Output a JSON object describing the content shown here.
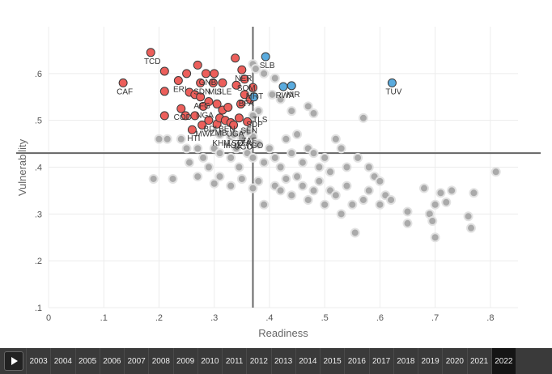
{
  "chart_data": {
    "type": "scatter",
    "xlabel": "Readiness",
    "ylabel": "Vulnerability",
    "xlim": [
      0,
      0.85
    ],
    "ylim": [
      0.1,
      0.7
    ],
    "x_ticks": [
      "0",
      ".1",
      ".2",
      ".3",
      ".4",
      ".5",
      ".6",
      ".7",
      ".8"
    ],
    "y_ticks": [
      ".1",
      ".2",
      ".3",
      ".4",
      ".5",
      ".6"
    ],
    "grid": true,
    "reference_lines": {
      "x": 0.37,
      "y": 0.43
    },
    "colors": {
      "red": "#ec5f5b",
      "blue": "#5aabde",
      "gray": "#aaaaaa",
      "line": "#666666"
    },
    "series": [
      {
        "color": "red",
        "points": [
          {
            "x": 0.135,
            "y": 0.58,
            "label": "CAF"
          },
          {
            "x": 0.185,
            "y": 0.645,
            "label": "TCD"
          },
          {
            "x": 0.21,
            "y": 0.605,
            "label": ""
          },
          {
            "x": 0.21,
            "y": 0.562,
            "label": ""
          },
          {
            "x": 0.21,
            "y": 0.51,
            "label": ""
          },
          {
            "x": 0.235,
            "y": 0.585,
            "label": "ERI"
          },
          {
            "x": 0.24,
            "y": 0.525,
            "label": "COD"
          },
          {
            "x": 0.248,
            "y": 0.51,
            "label": ""
          },
          {
            "x": 0.25,
            "y": 0.6,
            "label": ""
          },
          {
            "x": 0.255,
            "y": 0.56,
            "label": ""
          },
          {
            "x": 0.26,
            "y": 0.48,
            "label": "HTI"
          },
          {
            "x": 0.265,
            "y": 0.51,
            "label": ""
          },
          {
            "x": 0.265,
            "y": 0.555,
            "label": ""
          },
          {
            "x": 0.27,
            "y": 0.618,
            "label": ""
          },
          {
            "x": 0.275,
            "y": 0.58,
            "label": "SDN"
          },
          {
            "x": 0.275,
            "y": 0.55,
            "label": "AFG"
          },
          {
            "x": 0.278,
            "y": 0.49,
            "label": "MWI"
          },
          {
            "x": 0.28,
            "y": 0.53,
            "label": "NGA"
          },
          {
            "x": 0.285,
            "y": 0.6,
            "label": "GNB"
          },
          {
            "x": 0.29,
            "y": 0.5,
            "label": "BDI"
          },
          {
            "x": 0.29,
            "y": 0.54,
            "label": ""
          },
          {
            "x": 0.298,
            "y": 0.58,
            "label": "MLI"
          },
          {
            "x": 0.3,
            "y": 0.6,
            "label": ""
          },
          {
            "x": 0.305,
            "y": 0.535,
            "label": ""
          },
          {
            "x": 0.305,
            "y": 0.492,
            "label": "ZMB"
          },
          {
            "x": 0.31,
            "y": 0.505,
            "label": ""
          },
          {
            "x": 0.315,
            "y": 0.522,
            "label": ""
          },
          {
            "x": 0.315,
            "y": 0.58,
            "label": "SLE"
          },
          {
            "x": 0.32,
            "y": 0.5,
            "label": "BEN"
          },
          {
            "x": 0.325,
            "y": 0.528,
            "label": ""
          },
          {
            "x": 0.33,
            "y": 0.495,
            "label": ""
          },
          {
            "x": 0.335,
            "y": 0.49,
            "label": "UGA"
          },
          {
            "x": 0.338,
            "y": 0.633,
            "label": ""
          },
          {
            "x": 0.34,
            "y": 0.575,
            "label": ""
          },
          {
            "x": 0.345,
            "y": 0.505,
            "label": ""
          },
          {
            "x": 0.348,
            "y": 0.535,
            "label": ""
          },
          {
            "x": 0.35,
            "y": 0.608,
            "label": "NER"
          },
          {
            "x": 0.355,
            "y": 0.555,
            "label": "BFA"
          },
          {
            "x": 0.355,
            "y": 0.588,
            "label": "SOM"
          },
          {
            "x": 0.36,
            "y": 0.497,
            "label": "SEN"
          },
          {
            "x": 0.365,
            "y": 0.545,
            "label": ""
          },
          {
            "x": 0.37,
            "y": 0.57,
            "label": "MRT"
          }
        ]
      },
      {
        "color": "blue",
        "points": [
          {
            "x": 0.393,
            "y": 0.636,
            "label": "SLB"
          },
          {
            "x": 0.425,
            "y": 0.572,
            "label": "RWA"
          },
          {
            "x": 0.44,
            "y": 0.574,
            "label": "KIR"
          },
          {
            "x": 0.622,
            "y": 0.58,
            "label": "TUV"
          },
          {
            "x": 0.372,
            "y": 0.55,
            "label": ""
          }
        ]
      },
      {
        "color": "gray",
        "points": [
          {
            "x": 0.38,
            "y": 0.52,
            "label": "TLS"
          },
          {
            "x": 0.37,
            "y": 0.51,
            "label": "SDP"
          },
          {
            "x": 0.37,
            "y": 0.465,
            "label": "TGO"
          },
          {
            "x": 0.36,
            "y": 0.475,
            "label": "ZAF"
          },
          {
            "x": 0.33,
            "y": 0.465,
            "label": "MOZ"
          },
          {
            "x": 0.35,
            "y": 0.47,
            "label": "TZA"
          },
          {
            "x": 0.35,
            "y": 0.462,
            "label": "UGO"
          },
          {
            "x": 0.335,
            "y": 0.47,
            "label": "LSO"
          },
          {
            "x": 0.31,
            "y": 0.47,
            "label": "KHM"
          },
          {
            "x": 0.37,
            "y": 0.62
          },
          {
            "x": 0.375,
            "y": 0.61
          },
          {
            "x": 0.39,
            "y": 0.6
          },
          {
            "x": 0.41,
            "y": 0.59
          },
          {
            "x": 0.37,
            "y": 0.565
          },
          {
            "x": 0.405,
            "y": 0.555
          },
          {
            "x": 0.42,
            "y": 0.545
          },
          {
            "x": 0.44,
            "y": 0.52
          },
          {
            "x": 0.47,
            "y": 0.53
          },
          {
            "x": 0.48,
            "y": 0.515
          },
          {
            "x": 0.57,
            "y": 0.505
          },
          {
            "x": 0.2,
            "y": 0.46
          },
          {
            "x": 0.215,
            "y": 0.46
          },
          {
            "x": 0.24,
            "y": 0.46
          },
          {
            "x": 0.25,
            "y": 0.44
          },
          {
            "x": 0.255,
            "y": 0.41
          },
          {
            "x": 0.27,
            "y": 0.44
          },
          {
            "x": 0.28,
            "y": 0.42
          },
          {
            "x": 0.29,
            "y": 0.4
          },
          {
            "x": 0.3,
            "y": 0.44
          },
          {
            "x": 0.31,
            "y": 0.43
          },
          {
            "x": 0.33,
            "y": 0.42
          },
          {
            "x": 0.34,
            "y": 0.44
          },
          {
            "x": 0.345,
            "y": 0.4
          },
          {
            "x": 0.36,
            "y": 0.43
          },
          {
            "x": 0.37,
            "y": 0.42
          },
          {
            "x": 0.38,
            "y": 0.45
          },
          {
            "x": 0.39,
            "y": 0.41
          },
          {
            "x": 0.4,
            "y": 0.44
          },
          {
            "x": 0.41,
            "y": 0.42
          },
          {
            "x": 0.42,
            "y": 0.4
          },
          {
            "x": 0.43,
            "y": 0.46
          },
          {
            "x": 0.44,
            "y": 0.43
          },
          {
            "x": 0.45,
            "y": 0.47
          },
          {
            "x": 0.46,
            "y": 0.41
          },
          {
            "x": 0.47,
            "y": 0.44
          },
          {
            "x": 0.48,
            "y": 0.43
          },
          {
            "x": 0.49,
            "y": 0.4
          },
          {
            "x": 0.5,
            "y": 0.42
          },
          {
            "x": 0.51,
            "y": 0.39
          },
          {
            "x": 0.52,
            "y": 0.46
          },
          {
            "x": 0.53,
            "y": 0.44
          },
          {
            "x": 0.54,
            "y": 0.4
          },
          {
            "x": 0.56,
            "y": 0.42
          },
          {
            "x": 0.58,
            "y": 0.4
          },
          {
            "x": 0.59,
            "y": 0.38
          },
          {
            "x": 0.6,
            "y": 0.37
          },
          {
            "x": 0.19,
            "y": 0.375
          },
          {
            "x": 0.225,
            "y": 0.375
          },
          {
            "x": 0.27,
            "y": 0.38
          },
          {
            "x": 0.3,
            "y": 0.365
          },
          {
            "x": 0.31,
            "y": 0.38
          },
          {
            "x": 0.33,
            "y": 0.36
          },
          {
            "x": 0.35,
            "y": 0.375
          },
          {
            "x": 0.37,
            "y": 0.355
          },
          {
            "x": 0.38,
            "y": 0.37
          },
          {
            "x": 0.39,
            "y": 0.32
          },
          {
            "x": 0.41,
            "y": 0.36
          },
          {
            "x": 0.42,
            "y": 0.35
          },
          {
            "x": 0.43,
            "y": 0.375
          },
          {
            "x": 0.44,
            "y": 0.34
          },
          {
            "x": 0.45,
            "y": 0.38
          },
          {
            "x": 0.46,
            "y": 0.36
          },
          {
            "x": 0.47,
            "y": 0.33
          },
          {
            "x": 0.48,
            "y": 0.35
          },
          {
            "x": 0.49,
            "y": 0.37
          },
          {
            "x": 0.5,
            "y": 0.32
          },
          {
            "x": 0.51,
            "y": 0.35
          },
          {
            "x": 0.52,
            "y": 0.34
          },
          {
            "x": 0.53,
            "y": 0.3
          },
          {
            "x": 0.54,
            "y": 0.36
          },
          {
            "x": 0.55,
            "y": 0.32
          },
          {
            "x": 0.555,
            "y": 0.26
          },
          {
            "x": 0.57,
            "y": 0.33
          },
          {
            "x": 0.58,
            "y": 0.35
          },
          {
            "x": 0.6,
            "y": 0.32
          },
          {
            "x": 0.61,
            "y": 0.34
          },
          {
            "x": 0.62,
            "y": 0.33
          },
          {
            "x": 0.65,
            "y": 0.305
          },
          {
            "x": 0.65,
            "y": 0.28
          },
          {
            "x": 0.68,
            "y": 0.355
          },
          {
            "x": 0.69,
            "y": 0.3
          },
          {
            "x": 0.695,
            "y": 0.285
          },
          {
            "x": 0.7,
            "y": 0.32
          },
          {
            "x": 0.7,
            "y": 0.25
          },
          {
            "x": 0.71,
            "y": 0.345
          },
          {
            "x": 0.72,
            "y": 0.325
          },
          {
            "x": 0.73,
            "y": 0.35
          },
          {
            "x": 0.76,
            "y": 0.295
          },
          {
            "x": 0.765,
            "y": 0.27
          },
          {
            "x": 0.77,
            "y": 0.345
          },
          {
            "x": 0.81,
            "y": 0.39
          }
        ]
      }
    ]
  },
  "timeline": {
    "play_label": "Play",
    "years": [
      "2003",
      "2004",
      "2005",
      "2006",
      "2007",
      "2008",
      "2009",
      "2010",
      "2011",
      "2012",
      "2013",
      "2014",
      "2015",
      "2016",
      "2017",
      "2018",
      "2019",
      "2020",
      "2021",
      "2022"
    ],
    "selected_year": "2022"
  }
}
